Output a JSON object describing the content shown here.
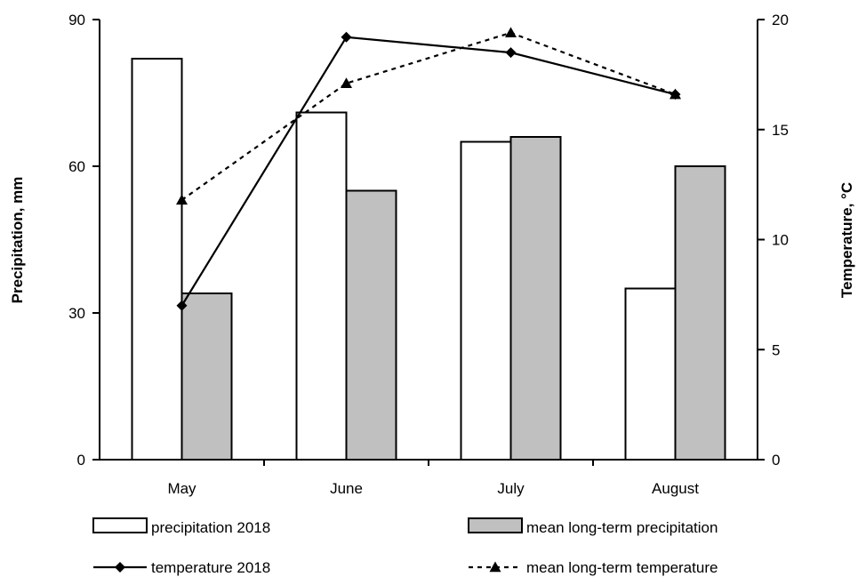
{
  "chart_data": {
    "type": "bar",
    "categories": [
      "May",
      "June",
      "July",
      "August"
    ],
    "series": [
      {
        "name": "precipitation 2018",
        "kind": "bar",
        "axis": "left",
        "color": "#ffffff",
        "values": [
          82,
          71,
          65,
          35
        ]
      },
      {
        "name": "mean long-term precipitation",
        "kind": "bar",
        "axis": "left",
        "color": "#c0c0c0",
        "values": [
          34,
          55,
          66,
          60
        ]
      },
      {
        "name": "temperature 2018",
        "kind": "line",
        "axis": "right",
        "line_style": "solid",
        "marker": "diamond",
        "values": [
          7.0,
          19.2,
          18.5,
          16.6
        ]
      },
      {
        "name": "mean long-term temperature",
        "kind": "line",
        "axis": "right",
        "line_style": "dashed",
        "marker": "triangle",
        "values": [
          11.8,
          17.1,
          19.4,
          16.6
        ]
      }
    ],
    "ylabel": "Precipitation, mm",
    "y2label": "Temperature, °C",
    "ylim": [
      0,
      90
    ],
    "y_ticks": [
      0,
      30,
      60,
      90
    ],
    "y2lim": [
      0,
      20
    ],
    "y2_ticks": [
      0,
      5,
      10,
      15,
      20
    ],
    "grid": false,
    "legend_position": "bottom"
  }
}
